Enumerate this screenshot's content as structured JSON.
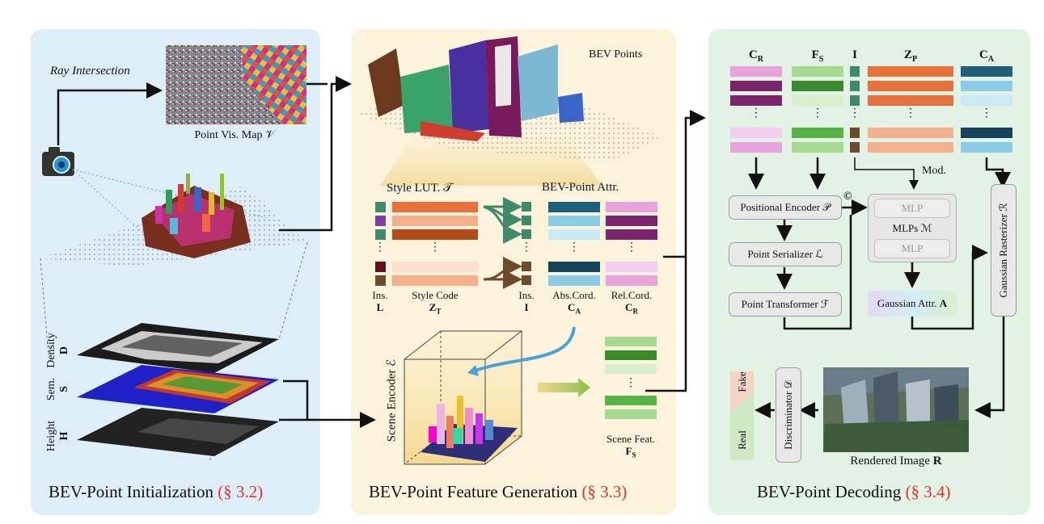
{
  "panels": {
    "init": {
      "title": "BEV-Point Initialization",
      "section": "(§ 3.2)"
    },
    "gen": {
      "title": "BEV-Point Feature Generation",
      "section": "(§ 3.3)"
    },
    "dec": {
      "title": "BEV-Point Decoding",
      "section": "(§ 3.4)"
    }
  },
  "init": {
    "ray_intersection": "Ray Intersection",
    "vis_map": "Point Vis. Map 𝒱",
    "layers": [
      {
        "name": "Density",
        "symbol": "D"
      },
      {
        "name": "Sem.",
        "symbol": "S"
      },
      {
        "name": "Height",
        "symbol": "H"
      }
    ]
  },
  "gen": {
    "bev_points": "BEV Points",
    "style_lut": "Style LUT. 𝒯",
    "bev_attr": "BEV-Point Attr.",
    "ins_l_name": "Ins.",
    "ins_l_sym": "L",
    "style_code_name": "Style Code",
    "style_code_sym": "ZT",
    "ins_i_name": "Ins.",
    "ins_i_sym": "I",
    "abs_name": "Abs.Cord.",
    "abs_sym": "CA",
    "rel_name": "Rel.Cord.",
    "rel_sym": "CR",
    "scene_encoder": "Scene Encoder ℰ",
    "scene_feat_name": "Scene Feat.",
    "scene_feat_sym": "FS",
    "ellipsis": "⋮"
  },
  "dec": {
    "col_cr": "CR",
    "col_fs": "FS",
    "col_i": "I",
    "col_zp": "ZP",
    "col_ca": "CA",
    "mod": "Mod.",
    "pos_enc": "Positional Encoder 𝒫",
    "concat": "©",
    "serializer": "Point Serializer ℒ",
    "transformer": "Point Transformer ℱ",
    "mlp1": "MLP",
    "mlp2": "MLP",
    "mlps": "MLPs  ℳ",
    "gauss_attr": "Gaussian Attr.",
    "gauss_attr_sym": "A",
    "rasterizer": "Gaussian Rasterizer ℛ",
    "rendered": "Rendered Image",
    "rendered_sym": "R",
    "discriminator": "Discriminator 𝒟",
    "fake": "Fake",
    "real": "Real"
  },
  "colors": {
    "orange": "#e8703a",
    "orange_light": "#f4b08c",
    "orange_pale": "#fbe0d0",
    "brown": "#b24b17",
    "teal": "#1f5f7a",
    "sky": "#8ccbe6",
    "sky_pale": "#cbe9f5",
    "navy": "#17435a",
    "pink": "#e8a2dc",
    "plum": "#7c246b",
    "pink_pale": "#f2cdee",
    "green_dark": "#3b8a2c",
    "green": "#57b443",
    "green_light": "#a7da91",
    "green_pale": "#d8efcd",
    "teal_ins": "#3e8a6a",
    "maroon": "#6b0f1c",
    "purple": "#7b3fa0",
    "brown_ins": "#6e4a2c",
    "red_section": "#e03030"
  }
}
